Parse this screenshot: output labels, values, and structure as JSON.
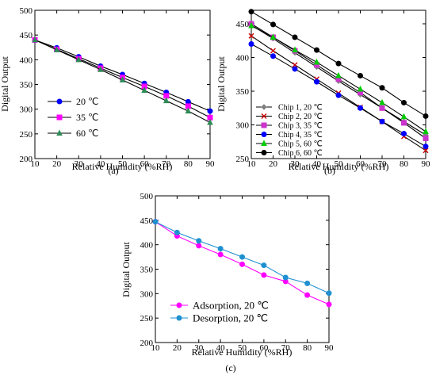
{
  "chart_data": [
    {
      "type": "line",
      "panel_label": "(a)",
      "xlabel": "Relative Humidity (%RH)",
      "ylabel": "Digital Output",
      "xlim": [
        10,
        90
      ],
      "ylim": [
        200,
        500
      ],
      "xticks": [
        10,
        20,
        30,
        40,
        50,
        60,
        70,
        80,
        90
      ],
      "yticks": [
        200,
        250,
        300,
        350,
        400,
        450,
        500
      ],
      "grid": false,
      "legend_position": "left",
      "x": [
        10,
        20,
        30,
        40,
        50,
        60,
        70,
        80,
        90
      ],
      "series": [
        {
          "name": "20 ℃",
          "color": "#0000ff",
          "marker": "circle",
          "line_color": "#000000",
          "values": [
            440,
            424,
            406,
            387,
            370,
            352,
            334,
            315,
            296
          ]
        },
        {
          "name": "35 ℃",
          "color": "#ff00ff",
          "marker": "square",
          "line_color": "#000000",
          "values": [
            440,
            421,
            402,
            383,
            364,
            346,
            327,
            306,
            283
          ]
        },
        {
          "name": "60 ℃",
          "color": "#2e8b57",
          "marker": "triangle",
          "line_color": "#000000",
          "values": [
            440,
            420,
            400,
            380,
            359,
            338,
            317,
            296,
            273
          ]
        }
      ]
    },
    {
      "type": "line",
      "panel_label": "(b)",
      "xlabel": "Relative Humidity (%RH)",
      "ylabel": "Digital Output",
      "xlim": [
        10,
        90
      ],
      "ylim": [
        250,
        470
      ],
      "xticks": [
        10,
        20,
        30,
        40,
        50,
        60,
        70,
        80,
        90
      ],
      "yticks": [
        250,
        300,
        350,
        400,
        450
      ],
      "grid": false,
      "legend_position": "lower-left",
      "x": [
        10,
        20,
        30,
        40,
        50,
        60,
        70,
        80,
        90
      ],
      "series": [
        {
          "name": "Chip 1, 20 ℃",
          "color": "#808080",
          "marker": "diamond",
          "line_color": "#000000",
          "values": [
            448,
            428,
            407,
            386,
            365,
            345,
            325,
            305,
            285
          ]
        },
        {
          "name": "Chip 2, 20 ℃",
          "color": "#cc0000",
          "marker": "x",
          "line_color": "#000000",
          "values": [
            432,
            410,
            389,
            368,
            347,
            326,
            305,
            283,
            262
          ]
        },
        {
          "name": "Chip 3, 35 ℃",
          "color": "#cc33cc",
          "marker": "square",
          "line_color": "#000000",
          "values": [
            450,
            430,
            410,
            389,
            368,
            348,
            325,
            303,
            280
          ]
        },
        {
          "name": "Chip 4, 35 ℃",
          "color": "#0000ff",
          "marker": "circle",
          "line_color": "#000000",
          "values": [
            420,
            402,
            383,
            364,
            344,
            325,
            305,
            287,
            268
          ]
        },
        {
          "name": "Chip 5, 60 ℃",
          "color": "#00cc00",
          "marker": "triangle",
          "line_color": "#000000",
          "values": [
            447,
            430,
            411,
            393,
            373,
            353,
            333,
            312,
            290
          ]
        },
        {
          "name": "Chip 6, 60 ℃",
          "color": "#000000",
          "marker": "circle",
          "line_color": "#000000",
          "values": [
            468,
            449,
            430,
            411,
            391,
            373,
            355,
            333,
            313
          ]
        }
      ]
    },
    {
      "type": "line",
      "panel_label": "(c)",
      "xlabel": "Relative Humidity (%RH)",
      "ylabel": "Digital Output",
      "xlim": [
        10,
        90
      ],
      "ylim": [
        200,
        500
      ],
      "xticks": [
        10,
        20,
        30,
        40,
        50,
        60,
        70,
        80,
        90
      ],
      "yticks": [
        200,
        250,
        300,
        350,
        400,
        450,
        500
      ],
      "grid": false,
      "legend_position": "lower-left",
      "x": [
        10,
        20,
        30,
        40,
        50,
        60,
        70,
        80,
        90
      ],
      "series": [
        {
          "name": "Adsorption, 20 ℃",
          "color": "#ff00ff",
          "marker": "circle",
          "line_color": "#ff00ff",
          "values": [
            447,
            418,
            398,
            380,
            360,
            338,
            325,
            297,
            278
          ]
        },
        {
          "name": "Desorption, 20 ℃",
          "color": "#1e90d0",
          "marker": "circle",
          "line_color": "#1e90d0",
          "values": [
            447,
            425,
            408,
            392,
            375,
            358,
            333,
            321,
            301
          ]
        }
      ]
    }
  ]
}
